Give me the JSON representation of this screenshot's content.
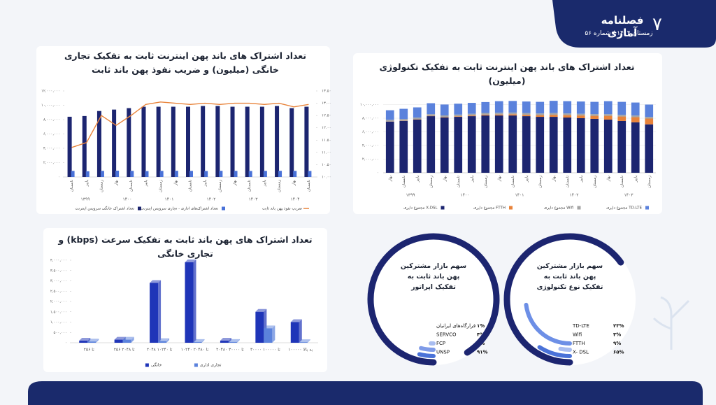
{
  "header": {
    "title": "فصلنامه آماری",
    "issue": "زمستان ۱۴۰۴ / شماره ۵۶",
    "page": "۷"
  },
  "chart_data": [
    {
      "type": "combo",
      "title": "تعداد اشتراک های باند پهن اینترنت ثابت به تفکیک تجاری خانگی (میلیون) و ضریب نفوذ پهن باند ثابت",
      "categories": [
        "تابستان",
        "پاییز",
        "زمستان",
        "بهار",
        "تابستان",
        "پاییز",
        "زمستان",
        "بهار",
        "تابستان",
        "پاییز",
        "زمستان",
        "بهار",
        "تابستان",
        "پاییز",
        "زمستان",
        "بهار",
        "تابستان"
      ],
      "x_groups": [
        "۱۳۹۹",
        "۱۴۰۰",
        "۱۴۰۱",
        "۱۴۰۲",
        "۱۴۰۳",
        "۱۴۰۴"
      ],
      "series": [
        {
          "name": "تعداد اشتراک خانگی سرویس اینترنت",
          "color": "#1c2570",
          "type": "bar",
          "values": [
            8400000,
            8500000,
            9200000,
            9400000,
            9600000,
            9800000,
            9800000,
            9800000,
            9800000,
            9900000,
            9900000,
            9800000,
            9800000,
            9800000,
            9900000,
            9600000,
            9800000
          ]
        },
        {
          "name": "تعداد اشتراک‌های اداری - تجاری سرویس اینترنت",
          "color": "#4a72d8",
          "type": "bar",
          "values": [
            850000,
            800000,
            850000,
            880000,
            850000,
            820000,
            850000,
            860000,
            850000,
            830000,
            860000,
            850000,
            840000,
            850000,
            860000,
            850000,
            840000
          ]
        },
        {
          "name": "ضریب نفوذ پهن باند ثابت",
          "color": "#e8833a",
          "type": "line",
          "axis": "y2",
          "values": [
            11.2,
            11.4,
            12.5,
            12.1,
            12.5,
            12.95,
            13.05,
            13.0,
            12.95,
            13.0,
            12.95,
            13.0,
            13.0,
            12.95,
            13.0,
            12.85,
            12.95
          ]
        }
      ],
      "ylim": [
        0,
        12000000
      ],
      "yticks": [
        {
          "value": 0,
          "label": "۰"
        },
        {
          "value": 2000000,
          "label": "۲,۰۰۰,۰۰۰"
        },
        {
          "value": 4000000,
          "label": "۴,۰۰۰,۰۰۰"
        },
        {
          "value": 6000000,
          "label": "۶,۰۰۰,۰۰۰"
        },
        {
          "value": 8000000,
          "label": "۸,۰۰۰,۰۰۰"
        },
        {
          "value": 10000000,
          "label": "۱۰,۰۰۰,۰۰۰"
        },
        {
          "value": 12000000,
          "label": "۱۲,۰۰۰,۰۰۰"
        }
      ],
      "y2lim": [
        10,
        13.5
      ],
      "y2ticks": [
        {
          "value": 10,
          "label": "۱۰.۰۰"
        },
        {
          "value": 10.5,
          "label": "۱۰.۵۰"
        },
        {
          "value": 11,
          "label": "۱۱.۰۰"
        },
        {
          "value": 11.5,
          "label": "۱۱.۵۰"
        },
        {
          "value": 12,
          "label": "۱۲.۰۰"
        },
        {
          "value": 12.5,
          "label": "۱۲.۵۰"
        },
        {
          "value": 13,
          "label": "۱۳.۰۰"
        },
        {
          "value": 13.5,
          "label": "۱۳.۵۰"
        }
      ],
      "grid": false
    },
    {
      "type": "stacked",
      "title": "تعداد اشتراک های باند پهن اینترنت ثابت به تفکیک تکنولوژی (میلیون)",
      "categories": [
        "بهار",
        "تابستان",
        "پاییز",
        "زمستان",
        "بهار",
        "تابستان",
        "پاییز",
        "زمستان",
        "بهار",
        "تابستان",
        "پاییز",
        "زمستان",
        "بهار",
        "تابستان",
        "پاییز",
        "زمستان",
        "بهار",
        "تابستان",
        "پاییز",
        "زمستان"
      ],
      "x_groups": [
        "۱۳۹۹",
        "۱۴۰۰",
        "۱۴۰۱",
        "۱۴۰۲",
        "۱۴۰۳"
      ],
      "series": [
        {
          "name": "مجموع دایری X-DSL",
          "color": "#1c2570",
          "values": [
            7500000,
            7600000,
            7800000,
            8300000,
            8100000,
            8200000,
            8300000,
            8400000,
            8400000,
            8400000,
            8300000,
            8200000,
            8200000,
            8100000,
            8000000,
            7900000,
            7800000,
            7600000,
            7400000,
            7100000
          ]
        },
        {
          "name": "مجموع دایری FTTH",
          "color": "#e8833a",
          "values": [
            20000,
            30000,
            40000,
            50000,
            60000,
            80000,
            100000,
            120000,
            150000,
            180000,
            200000,
            250000,
            300000,
            350000,
            400000,
            450000,
            550000,
            650000,
            750000,
            850000
          ]
        },
        {
          "name": "مجموع دایری Wifi",
          "color": "#a5a5a5",
          "values": [
            250000,
            250000,
            250000,
            250000,
            250000,
            250000,
            250000,
            250000,
            250000,
            250000,
            250000,
            250000,
            250000,
            250000,
            250000,
            250000,
            250000,
            250000,
            250000,
            250000
          ]
        },
        {
          "name": "مجموع دایری TD-LTE",
          "color": "#5b82dc",
          "values": [
            1400000,
            1500000,
            1500000,
            1600000,
            1600000,
            1600000,
            1600000,
            1600000,
            1700000,
            1700000,
            1700000,
            1700000,
            1800000,
            1800000,
            1800000,
            1800000,
            1900000,
            1900000,
            1900000,
            1800000
          ]
        }
      ],
      "ylim": [
        0,
        12000000
      ],
      "yticks": [
        {
          "value": 0,
          "label": "۰"
        },
        {
          "value": 2000000,
          "label": "۲,۰۰۰,۰۰۰"
        },
        {
          "value": 4000000,
          "label": "۴,۰۰۰,۰۰۰"
        },
        {
          "value": 6000000,
          "label": "۶,۰۰۰,۰۰۰"
        },
        {
          "value": 8000000,
          "label": "۸,۰۰۰,۰۰۰"
        },
        {
          "value": 10000000,
          "label": "۱۰,۰۰۰,۰۰۰"
        }
      ],
      "grid": true
    },
    {
      "type": "bar3d",
      "title": "تعداد اشتراک های پهن باند ثابت به تفکیک سرعت (kbps) و تجاری خانگی",
      "categories": [
        "تا ۲۵۶",
        "۲۵۶ تا ۲۰۴۸",
        "۲۰۴۸ تا ۱۰۲۴۰",
        "۱۰۲۴۰ تا ۲۰۴۸۰",
        "۲۰۴۸۰ تا ۳۰۰۰۰",
        "۳۰۰۰۰ تا ۱۰۰۰۰۰",
        "۱۰۰۰۰۰ به بالا"
      ],
      "series": [
        {
          "name": "خانگی",
          "color": "#1f35b8",
          "values": [
            100000,
            150000,
            2900000,
            3900000,
            100000,
            1500000,
            1000000
          ]
        },
        {
          "name": "تجاری اداری",
          "color": "#5b82dc",
          "values": [
            60000,
            150000,
            80000,
            40000,
            40000,
            700000,
            30000
          ]
        }
      ],
      "ylim": [
        0,
        4000000
      ],
      "yticks": [
        {
          "value": 0,
          "label": "۰"
        },
        {
          "value": 500000,
          "label": "۵۰۰,۰۰۰"
        },
        {
          "value": 1000000,
          "label": "۱,۰۰۰,۰۰۰"
        },
        {
          "value": 1500000,
          "label": "۱,۵۰۰,۰۰۰"
        },
        {
          "value": 2000000,
          "label": "۲,۰۰۰,۰۰۰"
        },
        {
          "value": 2500000,
          "label": "۲,۵۰۰,۰۰۰"
        },
        {
          "value": 3000000,
          "label": "۳,۰۰۰,۰۰۰"
        },
        {
          "value": 3500000,
          "label": "۳,۵۰۰,۰۰۰"
        },
        {
          "value": 4000000,
          "label": "۴,۰۰۰,۰۰۰"
        }
      ]
    },
    {
      "type": "radial",
      "title": "سهم بازار مشترکین پهن باند ثابت به تفکیک اپراتور",
      "categories": [
        "قرارگاه‌های ایرانیان",
        "SERVCO",
        "FCP",
        "UNSP"
      ],
      "values": [
        1,
        4,
        4,
        91
      ],
      "value_labels": [
        "۱%",
        "۴%",
        "۴%",
        "۹۱%"
      ],
      "colors": [
        "#a9bdf0",
        "#7f9be8",
        "#4a72d8",
        "#1c2570"
      ]
    },
    {
      "type": "radial",
      "title": "سهم بازار مشترکین پهن باند ثابت به تفکیک نوع تکنولوژی",
      "categories": [
        "TD-LTE",
        "Wifi",
        "FTTH",
        "X- DSL"
      ],
      "values": [
        23,
        3,
        9,
        65
      ],
      "value_labels": [
        "۲۳%",
        "۳%",
        "۹%",
        "۶۵%"
      ],
      "colors": [
        "#6d8fe6",
        "#a9bdf0",
        "#4a72d8",
        "#1c2570"
      ]
    }
  ]
}
